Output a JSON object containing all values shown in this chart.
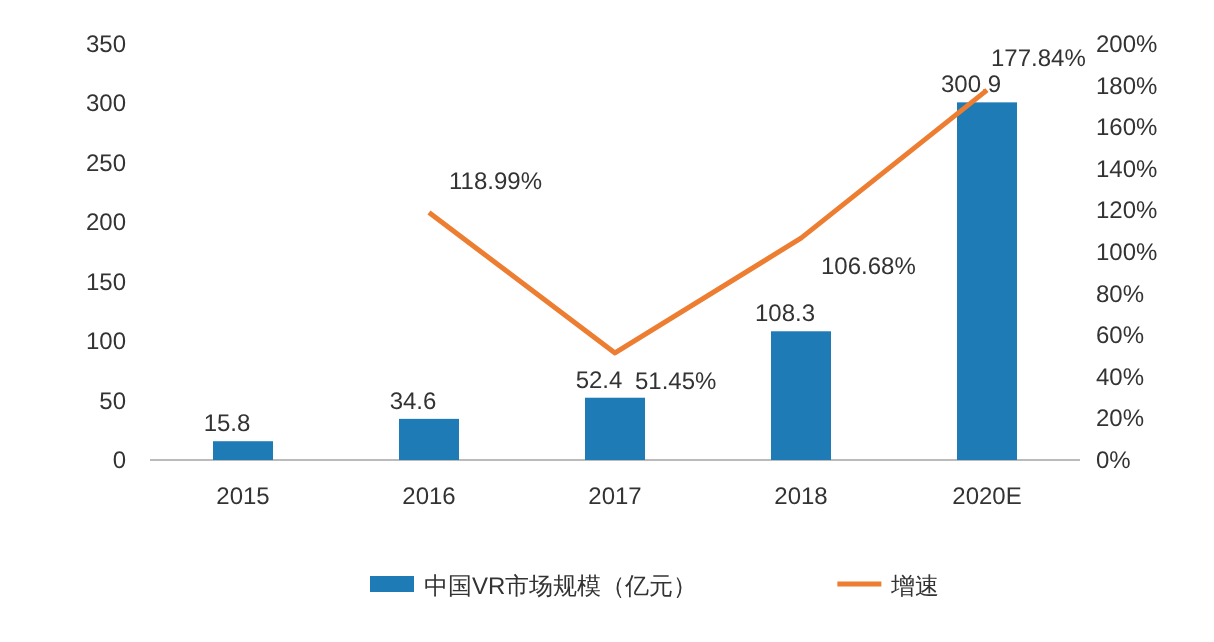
{
  "chart_data": {
    "type": "bar",
    "categories": [
      "2015",
      "2016",
      "2017",
      "2018",
      "2020E"
    ],
    "series": [
      {
        "name": "中国VR市场规模（亿元）",
        "color": "#1f7bb6",
        "values": [
          15.8,
          34.6,
          52.4,
          108.3,
          300.9
        ],
        "value_labels": [
          "15.8",
          "34.6",
          "52.4",
          "108.3",
          "300.9"
        ]
      },
      {
        "name": "增速",
        "type": "line",
        "axis": "y2",
        "color": "#ed7d31",
        "values": [
          null,
          118.99,
          51.45,
          106.68,
          177.84
        ],
        "value_labels": [
          null,
          "118.99%",
          "51.45%",
          "106.68%",
          "177.84%"
        ]
      }
    ],
    "ylim": [
      0,
      350
    ],
    "yticks": [
      0,
      50,
      100,
      150,
      200,
      250,
      300,
      350
    ],
    "y2lim": [
      0,
      200
    ],
    "y2ticks": [
      {
        "value": 0,
        "label": "0%"
      },
      {
        "value": 20,
        "label": "20%"
      },
      {
        "value": 40,
        "label": "40%"
      },
      {
        "value": 60,
        "label": "60%"
      },
      {
        "value": 80,
        "label": "80%"
      },
      {
        "value": 100,
        "label": "100%"
      },
      {
        "value": 120,
        "label": "120%"
      },
      {
        "value": 140,
        "label": "140%"
      },
      {
        "value": 160,
        "label": "160%"
      },
      {
        "value": 180,
        "label": "180%"
      },
      {
        "value": 200,
        "label": "200%"
      }
    ],
    "legend": "bottom"
  }
}
